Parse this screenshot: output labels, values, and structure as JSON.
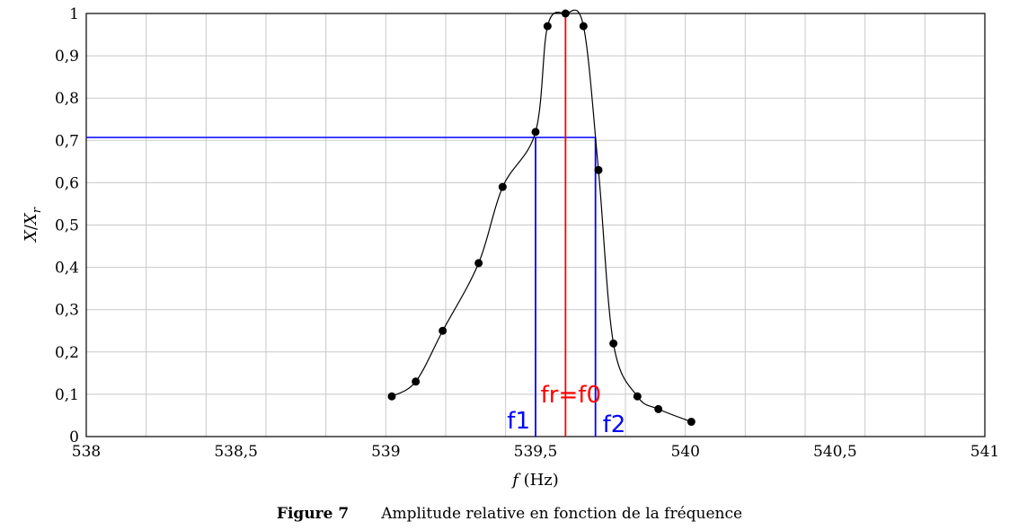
{
  "chart_data": {
    "type": "line",
    "xlabel": "f (Hz)",
    "ylabel": "X/X_r",
    "xlim": [
      538,
      541
    ],
    "ylim": [
      0,
      1
    ],
    "grid": true,
    "x_ticks": [
      538,
      538.2,
      538.4,
      538.6,
      538.8,
      539,
      539.2,
      539.4,
      539.6,
      539.8,
      540,
      540.2,
      540.4,
      540.6,
      540.8,
      541
    ],
    "x_tick_labels": [
      {
        "x": 538,
        "label": "538"
      },
      {
        "x": 538.5,
        "label": "538,5"
      },
      {
        "x": 539,
        "label": "539"
      },
      {
        "x": 539.5,
        "label": "539,5"
      },
      {
        "x": 540,
        "label": "540"
      },
      {
        "x": 540.5,
        "label": "540,5"
      },
      {
        "x": 541,
        "label": "541"
      }
    ],
    "y_ticks": [
      0,
      0.1,
      0.2,
      0.3,
      0.4,
      0.5,
      0.6,
      0.7,
      0.8,
      0.9,
      1
    ],
    "y_tick_labels": [
      "0",
      "0,1",
      "0,2",
      "0,3",
      "0,4",
      "0,5",
      "0,6",
      "0,7",
      "0,8",
      "0,9",
      "1"
    ],
    "series": [
      {
        "color": "#000000",
        "points": [
          {
            "x": 539.02,
            "y": 0.095
          },
          {
            "x": 539.1,
            "y": 0.13
          },
          {
            "x": 539.19,
            "y": 0.25
          },
          {
            "x": 539.31,
            "y": 0.41
          },
          {
            "x": 539.39,
            "y": 0.59
          },
          {
            "x": 539.5,
            "y": 0.72
          },
          {
            "x": 539.54,
            "y": 0.97
          },
          {
            "x": 539.6,
            "y": 1.0
          },
          {
            "x": 539.66,
            "y": 0.97
          },
          {
            "x": 539.71,
            "y": 0.63
          },
          {
            "x": 539.76,
            "y": 0.22
          },
          {
            "x": 539.84,
            "y": 0.095
          },
          {
            "x": 539.91,
            "y": 0.065
          },
          {
            "x": 540.02,
            "y": 0.035
          }
        ]
      }
    ],
    "reference_lines": {
      "horizontal": {
        "y": 0.707,
        "x_end": 539.7,
        "color": "#0000ff"
      },
      "f1": {
        "x": 539.5,
        "color": "#0000ff",
        "label": "f1"
      },
      "f2": {
        "x": 539.7,
        "color": "#0000ff",
        "label": "f2"
      },
      "f0": {
        "x": 539.6,
        "color": "#ff0000",
        "label": "fr=f0"
      }
    }
  },
  "caption": {
    "figure": "Figure 7",
    "text": "Amplitude relative en fonction de la fréquence"
  }
}
